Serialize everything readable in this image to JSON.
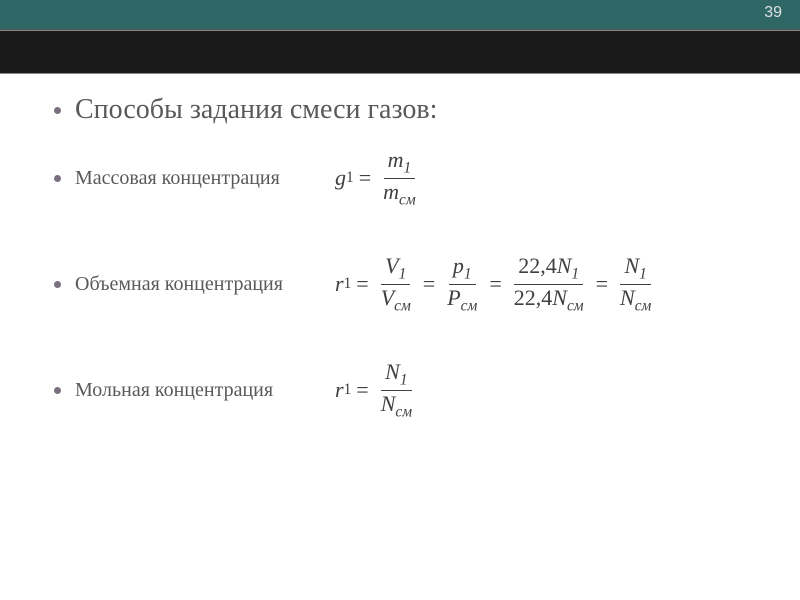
{
  "page_number": "39",
  "colors": {
    "topbar_bg": "#2f6767",
    "darkband_bg": "#1a1a1a",
    "text_color": "#595959",
    "formula_color": "#404040",
    "bullet_color": "#7a7080",
    "page_bg": "#ffffff"
  },
  "typography": {
    "heading_fontsize": 28,
    "label_fontsize": 20,
    "formula_fontsize": 22,
    "font_family": "Georgia, Times New Roman, serif"
  },
  "heading": "Способы задания смеси газов:",
  "items": [
    {
      "label": "Массовая концентрация",
      "lhs_var": "g",
      "lhs_sub": "1",
      "terms": [
        {
          "num_var": "m",
          "num_sub": "1",
          "den_var": "m",
          "den_sub": "см"
        }
      ]
    },
    {
      "label": "Объемная концентрация",
      "lhs_var": "r",
      "lhs_sub": "1",
      "terms": [
        {
          "num_var": "V",
          "num_sub": "1",
          "den_var": "V",
          "den_sub": "см"
        },
        {
          "num_var": "p",
          "num_sub": "1",
          "den_var": "P",
          "den_sub": "см"
        },
        {
          "num_pre": "22,4",
          "num_var": "N",
          "num_sub": "1",
          "den_pre": "22,4",
          "den_var": "N",
          "den_sub": "см"
        },
        {
          "num_var": "N",
          "num_sub": "1",
          "den_var": "N",
          "den_sub": "см"
        }
      ]
    },
    {
      "label": "Мольная концентрация",
      "lhs_var": "r",
      "lhs_sub": "1",
      "terms": [
        {
          "num_var": "N",
          "num_sub": "1",
          "den_var": "N",
          "den_sub": "см"
        }
      ]
    }
  ]
}
